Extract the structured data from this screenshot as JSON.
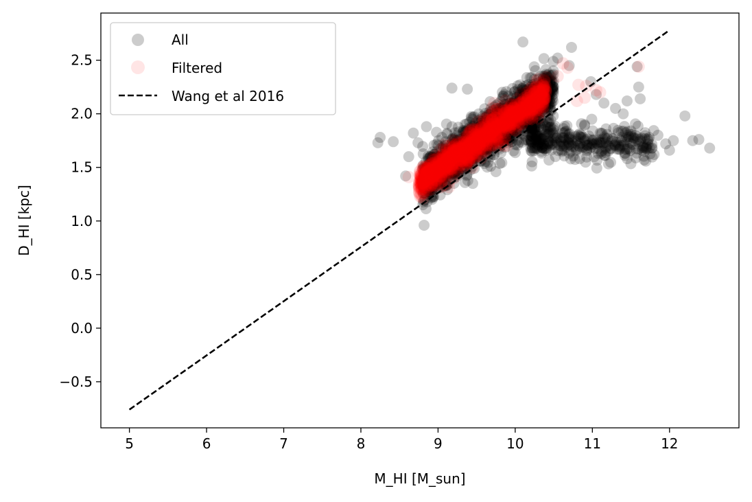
{
  "chart_data": {
    "type": "scatter",
    "xlabel": "M_HI [M_sun]",
    "ylabel": "D_HI [kpc]",
    "xlim": [
      4.63,
      12.9
    ],
    "ylim": [
      -0.93,
      2.94
    ],
    "xticks": [
      5,
      6,
      7,
      8,
      9,
      10,
      11,
      12
    ],
    "yticks": [
      -0.5,
      0.0,
      0.5,
      1.0,
      1.5,
      2.0,
      2.5
    ],
    "ytick_labels": [
      "−0.5",
      "0.0",
      "0.5",
      "1.0",
      "1.5",
      "2.0",
      "2.5"
    ],
    "grid": false,
    "legend_position": "top-left",
    "colors": {
      "all": "#000000",
      "filtered": "#ff0000",
      "fit_line": "#000000"
    },
    "series": [
      {
        "name": "All",
        "kind": "scatter",
        "main_cloud": {
          "x_range": [
            8.8,
            10.5
          ],
          "center_slope": 0.51,
          "center_at_9": 1.47,
          "spread": 0.12
        },
        "branch_cloud": {
          "x_range": [
            10.2,
            11.8
          ],
          "y_center": 1.78,
          "spread": 0.08
        },
        "outliers": [
          [
            8.22,
            1.73
          ],
          [
            8.25,
            1.78
          ],
          [
            8.42,
            1.74
          ],
          [
            8.58,
            1.42
          ],
          [
            8.62,
            1.6
          ],
          [
            8.68,
            1.82
          ],
          [
            8.74,
            1.73
          ],
          [
            8.85,
            1.88
          ],
          [
            9.05,
            1.78
          ],
          [
            9.18,
            2.24
          ],
          [
            9.38,
            2.23
          ],
          [
            9.45,
            1.35
          ],
          [
            9.75,
            1.46
          ],
          [
            10.1,
            2.67
          ],
          [
            10.55,
            2.52
          ],
          [
            10.73,
            2.62
          ],
          [
            10.7,
            2.45
          ],
          [
            10.98,
            2.3
          ],
          [
            11.05,
            2.18
          ],
          [
            11.15,
            2.1
          ],
          [
            11.3,
            2.05
          ],
          [
            11.4,
            2.0
          ],
          [
            11.45,
            2.12
          ],
          [
            11.6,
            2.25
          ],
          [
            11.62,
            2.14
          ],
          [
            11.58,
            2.44
          ],
          [
            11.72,
            1.72
          ],
          [
            11.8,
            1.62
          ],
          [
            11.85,
            1.8
          ],
          [
            11.95,
            1.72
          ],
          [
            12.0,
            1.66
          ],
          [
            12.05,
            1.75
          ],
          [
            12.2,
            1.98
          ],
          [
            12.3,
            1.75
          ],
          [
            12.38,
            1.76
          ],
          [
            12.52,
            1.68
          ],
          [
            11.5,
            1.84
          ],
          [
            11.3,
            1.7
          ],
          [
            11.1,
            1.82
          ],
          [
            10.9,
            1.9
          ]
        ]
      },
      {
        "name": "Filtered",
        "kind": "scatter",
        "cloud": {
          "x_range": [
            8.75,
            10.4
          ],
          "center_slope": 0.51,
          "center_at_9": 1.48,
          "spread": 0.07
        },
        "outliers": [
          [
            8.62,
            1.41
          ],
          [
            8.8,
            1.38
          ],
          [
            8.95,
            1.33
          ],
          [
            10.62,
            2.47
          ],
          [
            10.68,
            2.43
          ],
          [
            10.55,
            2.35
          ],
          [
            10.82,
            2.27
          ],
          [
            10.92,
            2.26
          ],
          [
            11.05,
            2.22
          ],
          [
            11.1,
            2.2
          ],
          [
            11.6,
            2.44
          ],
          [
            10.8,
            2.12
          ],
          [
            10.9,
            2.15
          ]
        ]
      },
      {
        "name": "Wang et al 2016",
        "kind": "line",
        "x": [
          5,
          12
        ],
        "y": [
          -0.76,
          2.78
        ]
      }
    ]
  }
}
